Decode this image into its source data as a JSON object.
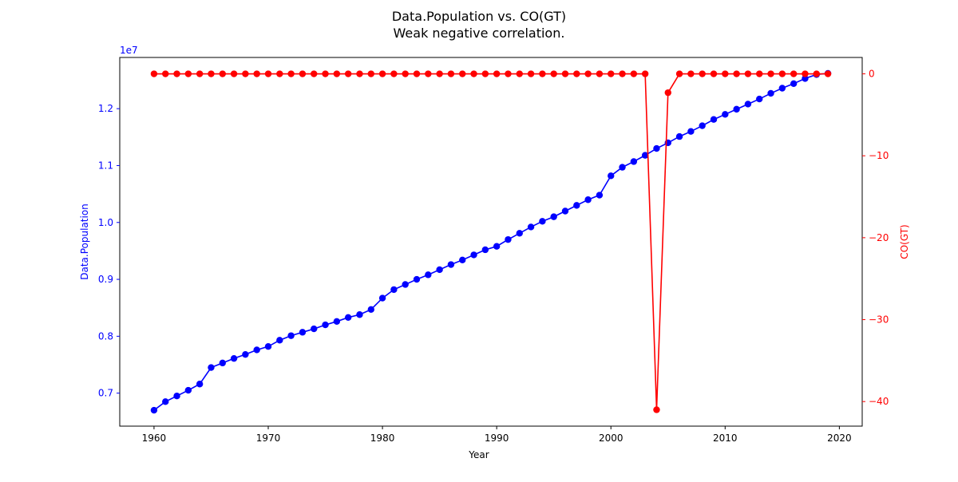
{
  "chart_data": {
    "type": "line",
    "title": "Data.Population vs. CO(GT)",
    "subtitle": "Weak negative correlation.",
    "xlabel": "Year",
    "ylabel_left": "Data.Population",
    "ylabel_right": "CO(GT)",
    "left_axis_offset_label": "1e7",
    "xlim": [
      1957,
      2022
    ],
    "ylim_left": [
      6.42,
      12.9
    ],
    "ylim_right": [
      -43,
      2
    ],
    "x_ticks": [
      1960,
      1970,
      1980,
      1990,
      2000,
      2010,
      2020
    ],
    "x_tick_labels": [
      "1960",
      "1970",
      "1980",
      "1990",
      "2000",
      "2010",
      "2020"
    ],
    "y_left_ticks": [
      0.7,
      0.8,
      0.9,
      1.0,
      1.1,
      1.2
    ],
    "y_left_tick_labels": [
      "0.7",
      "0.8",
      "0.9",
      "1.0",
      "1.1",
      "1.2"
    ],
    "y_right_ticks": [
      0,
      -10,
      -20,
      -30,
      -40
    ],
    "y_right_tick_labels": [
      "0",
      "−10",
      "−20",
      "−30",
      "−40"
    ],
    "grid": false,
    "legend": "none",
    "x": [
      1960,
      1961,
      1962,
      1963,
      1964,
      1965,
      1966,
      1967,
      1968,
      1969,
      1970,
      1971,
      1972,
      1973,
      1974,
      1975,
      1976,
      1977,
      1978,
      1979,
      1980,
      1981,
      1982,
      1983,
      1984,
      1985,
      1986,
      1987,
      1988,
      1989,
      1990,
      1991,
      1992,
      1993,
      1994,
      1995,
      1996,
      1997,
      1998,
      1999,
      2000,
      2001,
      2002,
      2003,
      2004,
      2005,
      2006,
      2007,
      2008,
      2009,
      2010,
      2011,
      2012,
      2013,
      2014,
      2015,
      2016,
      2017,
      2018,
      2019
    ],
    "series": [
      {
        "axis": "left",
        "color": "#0000ff",
        "values": [
          6.7,
          6.85,
          6.95,
          7.05,
          7.16,
          7.45,
          7.53,
          7.61,
          7.68,
          7.76,
          7.82,
          7.93,
          8.01,
          8.07,
          8.13,
          8.2,
          8.26,
          8.33,
          8.38,
          8.47,
          8.67,
          8.82,
          8.91,
          9.0,
          9.08,
          9.17,
          9.26,
          9.34,
          9.43,
          9.52,
          9.58,
          9.7,
          9.81,
          9.92,
          10.02,
          10.1,
          10.2,
          10.3,
          10.4,
          10.48,
          10.82,
          10.97,
          11.07,
          11.18,
          11.3,
          11.4,
          11.51,
          11.6,
          11.7,
          11.81,
          11.9,
          11.99,
          12.08,
          12.17,
          12.27,
          12.36,
          12.44,
          12.53,
          12.6,
          12.62
        ]
      },
      {
        "axis": "right",
        "color": "#ff0000",
        "values": [
          0,
          0,
          0,
          0,
          0,
          0,
          0,
          0,
          0,
          0,
          0,
          0,
          0,
          0,
          0,
          0,
          0,
          0,
          0,
          0,
          0,
          0,
          0,
          0,
          0,
          0,
          0,
          0,
          0,
          0,
          0,
          0,
          0,
          0,
          0,
          0,
          0,
          0,
          0,
          0,
          0,
          0,
          0,
          0,
          -41,
          -2.3,
          0,
          0,
          0,
          0,
          0,
          0,
          0,
          0,
          0,
          0,
          0,
          0,
          0,
          0
        ]
      }
    ],
    "colors": {
      "axis_text": "#000000",
      "left_axis": "#0000ff",
      "right_axis": "#ff0000"
    }
  }
}
